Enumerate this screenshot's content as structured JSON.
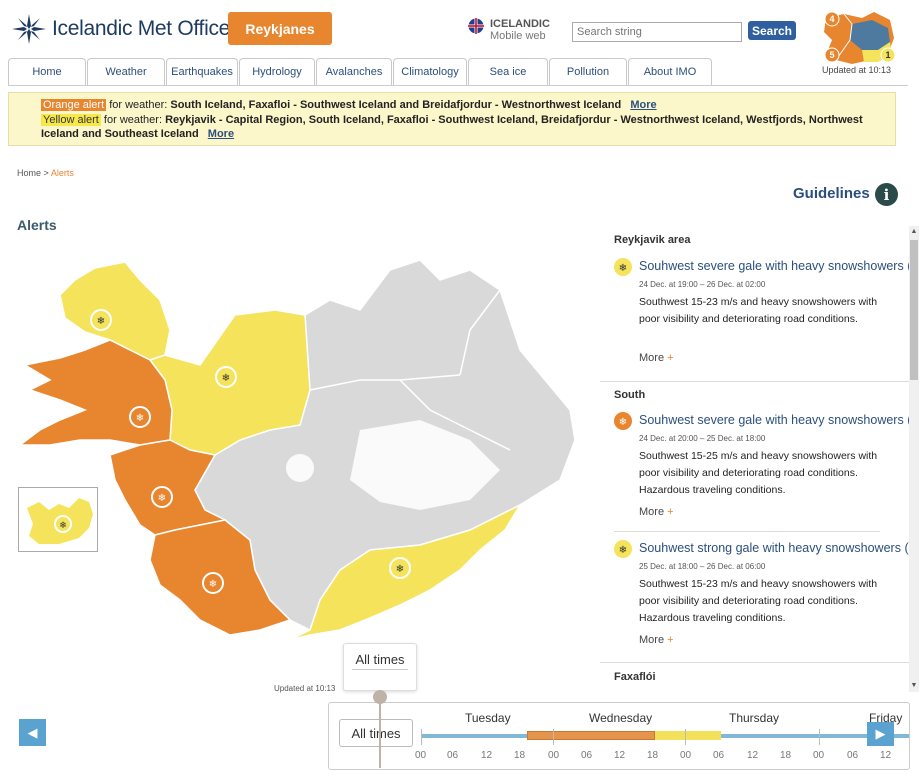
{
  "header": {
    "logo_text": "Icelandic Met Office",
    "region_button": "Reykjanes",
    "mobile_title": "ICELANDIC",
    "mobile_subtitle": "Mobile web",
    "search_placeholder": "Search string",
    "search_button": "Search",
    "minimap_numbers": [
      "4",
      "5",
      "1"
    ],
    "updated": "Updated at 10:13"
  },
  "nav": {
    "tabs": [
      {
        "label": "Home"
      },
      {
        "label": "Weather"
      },
      {
        "label": "Earthquakes"
      },
      {
        "label": "Hydrology"
      },
      {
        "label": "Avalanches"
      },
      {
        "label": "Climatology"
      },
      {
        "label": "Sea ice"
      },
      {
        "label": "Pollution"
      },
      {
        "label": "About IMO"
      }
    ]
  },
  "alerts_banner": {
    "orange": {
      "tag": "Orange alert",
      "prefix": "for weather:",
      "regions": "South Iceland, Faxafloi - Southwest Iceland and Breidafjordur - Westnorthwest Iceland",
      "more": "More"
    },
    "yellow": {
      "tag": "Yellow alert",
      "prefix": "for weather:",
      "regions": "Reykjavik - Capital Region, South Iceland, Faxafloi - Southwest Iceland, Breidafjordur - Westnorthwest Iceland, Westfjords, Northwest Iceland and Southeast Iceland",
      "more": "More"
    }
  },
  "breadcrumb": {
    "home": "Home",
    "sep": ">",
    "current": "Alerts"
  },
  "guidelines": {
    "label": "Guidelines",
    "icon": "i"
  },
  "page_title": "Alerts",
  "map_updated": "Updated at 10:13",
  "colors": {
    "orange": "#e8852f",
    "yellow": "#f5e35c",
    "grey": "#d9d9d9",
    "accent": "#2b4f7c"
  },
  "panel": {
    "areas": [
      {
        "name": "Reykjavik area"
      },
      {
        "name": "South"
      },
      {
        "name": "Faxaflói"
      }
    ],
    "cards": [
      {
        "title": "Souhwest severe gale with heavy snowshowers",
        "title_tail": "(",
        "level": "yellow",
        "time": "24 Dec. at 19:00 – 26 Dec. at 02:00",
        "desc": "Southwest 15-23 m/s and heavy snowshowers with poor visibility and deteriorating road conditions.",
        "more": "More"
      },
      {
        "title": "Souhwest severe gale with heavy snowshowers",
        "title_tail": "(",
        "level": "orange",
        "time": "24 Dec. at 20:00 – 25 Dec. at 18:00",
        "desc": "Southwest 15-25 m/s and heavy snowshowers with poor visibility and deteriorating road conditions. Hazardous traveling conditions.",
        "more": "More"
      },
      {
        "title": "Souhwest strong gale with heavy snowshowers",
        "title_tail": "(Y",
        "level": "yellow",
        "time": "25 Dec. at 18:00 – 26 Dec. at 06:00",
        "desc": "Southwest 15-23 m/s and heavy snowshowers with poor visibility and deteriorating road conditions. Hazardous traveling conditions.",
        "more": "More"
      }
    ]
  },
  "timeline": {
    "alltimes_bubble": "All times",
    "alltimes_button": "All times",
    "days": [
      "Tuesday",
      "Wednesday",
      "Thursday",
      "Friday"
    ],
    "hours": [
      "00",
      "06",
      "12",
      "18",
      "00",
      "06",
      "12",
      "18",
      "00",
      "06",
      "12",
      "18",
      "00",
      "06",
      "12"
    ],
    "orange_range": [
      "Tuesday 18:00",
      "Wednesday 18:00"
    ],
    "yellow_range": [
      "Wednesday 18:00",
      "Thursday 06:00"
    ]
  }
}
